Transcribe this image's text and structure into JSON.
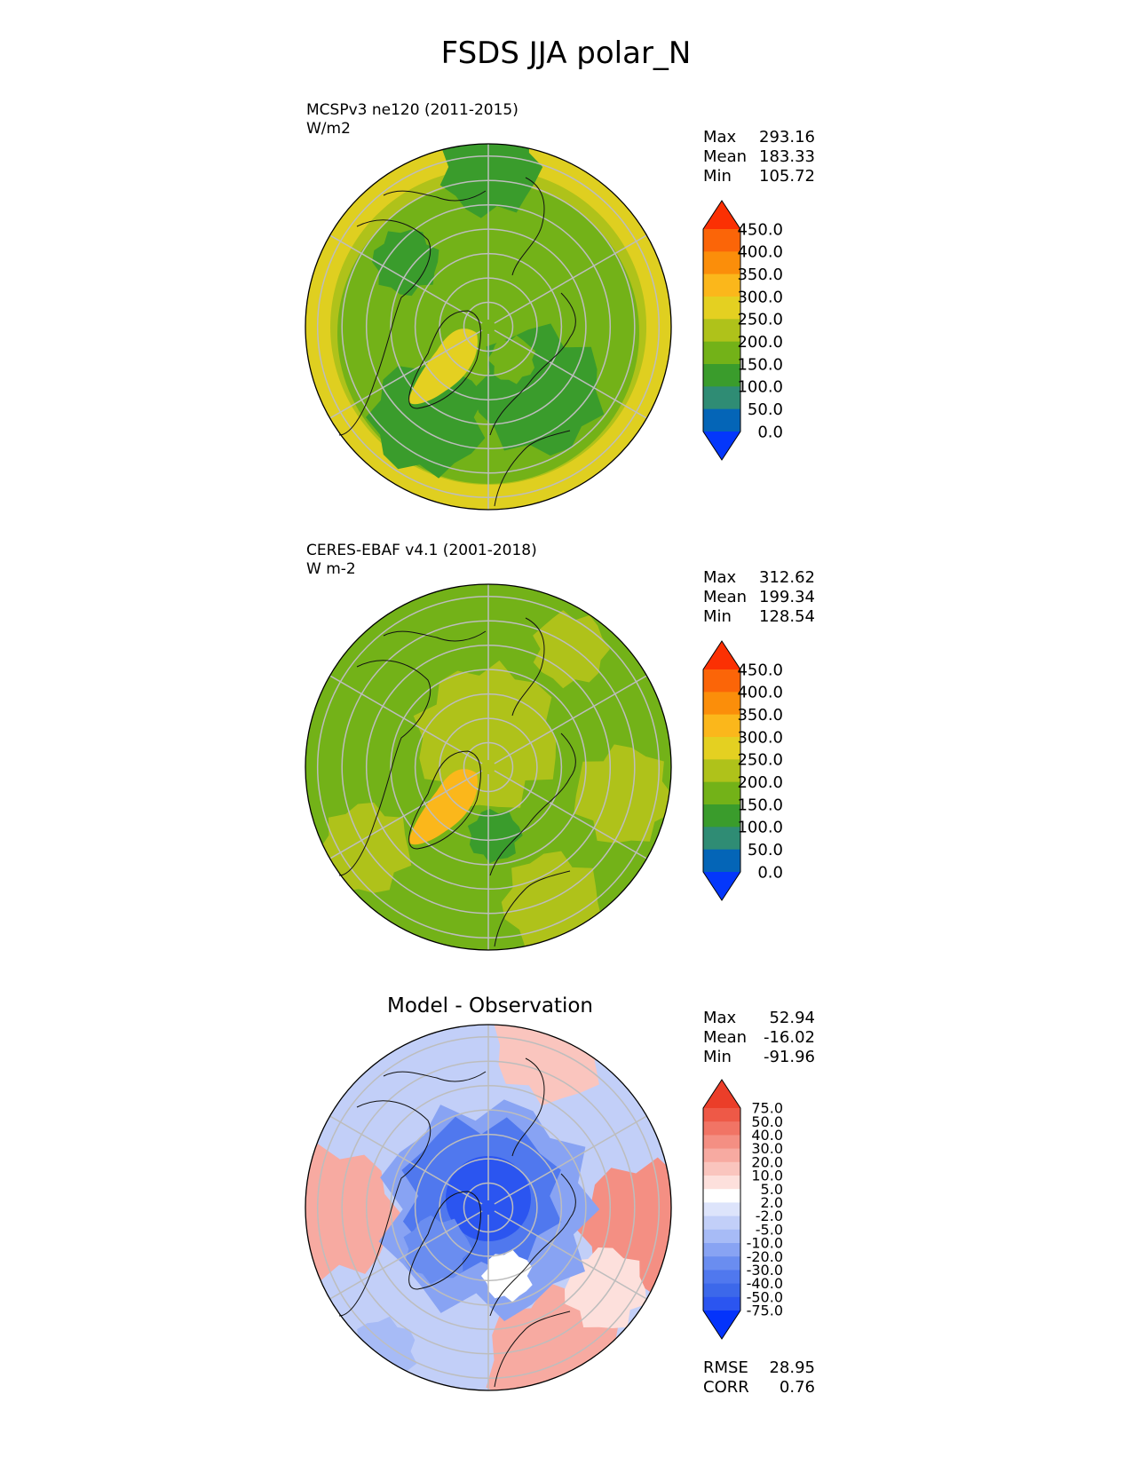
{
  "title": "FSDS JJA polar_N",
  "colors": {
    "abs_levels": [
      "#0437fb",
      "#0465b7",
      "#2f8c74",
      "#3a9c2c",
      "#73b218",
      "#afc21a",
      "#e4d021",
      "#fbb71b",
      "#fb8e0a",
      "#fb6508",
      "#fb3003"
    ],
    "diff_levels": [
      "#0433fb",
      "#2b55f0",
      "#3c68ea",
      "#5078ee",
      "#6a8df0",
      "#88a3f3",
      "#a7bbf6",
      "#c2cff8",
      "#dde4fb",
      "#ffffff",
      "#fde0dc",
      "#fac5be",
      "#f7aaa1",
      "#f48f83",
      "#f17465",
      "#ee5947",
      "#eb3e29"
    ],
    "map_base": "#78b417",
    "grid": "#bdbdbd",
    "coast": "#111111"
  },
  "chart_data": [
    {
      "type": "heatmap",
      "title": "MCSPv3 ne120 (2011-2015)",
      "units": "W/m2",
      "stats": {
        "Max": "293.16",
        "Mean": "183.33",
        "Min": "105.72"
      },
      "colorbar": {
        "levels": [
          "0.0",
          "50.0",
          "100.0",
          "150.0",
          "200.0",
          "250.0",
          "300.0",
          "350.0",
          "400.0",
          "450.0"
        ],
        "extend": "both"
      }
    },
    {
      "type": "heatmap",
      "title": "CERES-EBAF v4.1 (2001-2018)",
      "units": "W m-2",
      "stats": {
        "Max": "312.62",
        "Mean": "199.34",
        "Min": "128.54"
      },
      "colorbar": {
        "levels": [
          "0.0",
          "50.0",
          "100.0",
          "150.0",
          "200.0",
          "250.0",
          "300.0",
          "350.0",
          "400.0",
          "450.0"
        ],
        "extend": "both"
      }
    },
    {
      "type": "heatmap",
      "title": "Model - Observation",
      "stats": {
        "Max": "52.94",
        "Mean": "-16.02",
        "Min": "-91.96"
      },
      "colorbar": {
        "levels": [
          "-75.0",
          "-50.0",
          "-40.0",
          "-30.0",
          "-20.0",
          "-10.0",
          "-5.0",
          "-2.0",
          "2.0",
          "5.0",
          "10.0",
          "20.0",
          "30.0",
          "40.0",
          "50.0",
          "75.0"
        ],
        "extend": "both"
      },
      "metrics": {
        "RMSE": "28.95",
        "CORR": "0.76"
      }
    }
  ]
}
